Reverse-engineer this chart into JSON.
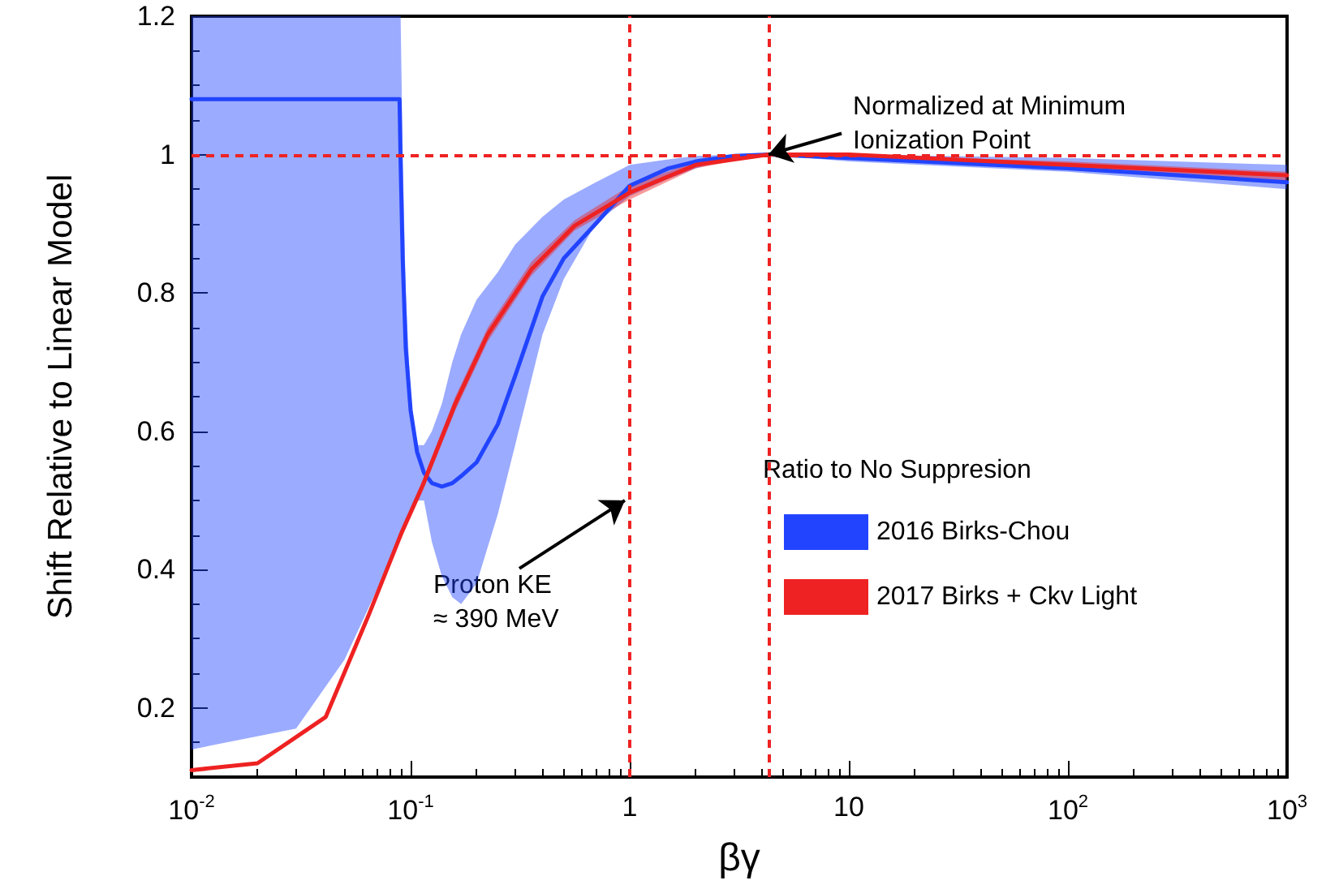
{
  "chart_data": {
    "type": "line",
    "xlabel": "βγ",
    "ylabel": "Shift Relative to Linear Model",
    "legend_title": "Ratio to No Suppresion",
    "log": "x",
    "grid": false,
    "marker": "none",
    "legend": "bottom right",
    "xlim": [
      0.01,
      1000
    ],
    "xticks": [
      {
        "value": 0.01,
        "label": "10$^{-2}$"
      },
      {
        "value": 0.1,
        "label": "10$^{-1}$"
      },
      1,
      10,
      {
        "value": 100,
        "label": "10$^{2}$"
      },
      {
        "value": 1000,
        "label": "10$^{3}$"
      }
    ],
    "ylim": [
      0.1,
      1.2
    ],
    "yticks": [
      0.2,
      0.4,
      0.6,
      0.8,
      1,
      1.2
    ],
    "series": [
      {
        "name": "2016 Birks-Chou",
        "color": "#2244ff",
        "x": [
          0.01,
          0.03,
          0.05,
          0.07,
          0.089,
          0.09,
          0.092,
          0.095,
          0.1,
          0.107,
          0.115,
          0.125,
          0.139,
          0.155,
          0.17,
          0.2,
          0.25,
          0.3,
          0.4,
          0.5,
          0.7,
          1,
          1.5,
          2,
          3,
          4.3,
          10,
          100,
          1000
        ],
        "values": [
          1.08,
          1.08,
          1.08,
          1.08,
          1.08,
          0.99,
          0.85,
          0.72,
          0.63,
          0.57,
          0.54,
          0.525,
          0.52,
          0.525,
          0.535,
          0.555,
          0.61,
          0.68,
          0.795,
          0.85,
          0.9,
          0.955,
          0.98,
          0.99,
          0.998,
          1.0,
          0.995,
          0.98,
          0.96
        ],
        "lower": [
          0.14,
          0.17,
          0.27,
          0.37,
          0.45,
          0.45,
          0.46,
          0.47,
          0.48,
          0.5,
          0.5,
          0.44,
          0.39,
          0.36,
          0.35,
          0.38,
          0.48,
          0.58,
          0.74,
          0.82,
          0.9,
          0.94,
          0.965,
          0.98,
          0.995,
          1.0,
          0.99,
          0.975,
          0.95
        ],
        "upper": [
          1.2,
          1.2,
          1.2,
          1.2,
          1.2,
          1.2,
          1.0,
          0.8,
          0.65,
          0.58,
          0.58,
          0.6,
          0.64,
          0.7,
          0.74,
          0.79,
          0.83,
          0.87,
          0.91,
          0.935,
          0.96,
          0.985,
          0.993,
          0.998,
          1.0,
          1.0,
          1.0,
          0.995,
          0.985
        ]
      },
      {
        "name": "2017 Birks + Ckv Light",
        "color": "#ee2222",
        "x": [
          0.01,
          0.02,
          0.041,
          0.0645,
          0.0906,
          0.114,
          0.16,
          0.225,
          0.356,
          0.56,
          1,
          2,
          4.3,
          10,
          100,
          1000
        ],
        "values": [
          0.11,
          0.12,
          0.187,
          0.335,
          0.452,
          0.523,
          0.64,
          0.74,
          0.834,
          0.897,
          0.945,
          0.985,
          1.0,
          1.0,
          0.985,
          0.97
        ],
        "lower": [
          0.11,
          0.12,
          0.185,
          0.33,
          0.445,
          0.515,
          0.63,
          0.73,
          0.825,
          0.89,
          0.935,
          0.98,
          1.0,
          0.995,
          0.98,
          0.96
        ],
        "upper": [
          0.11,
          0.12,
          0.19,
          0.34,
          0.46,
          0.53,
          0.65,
          0.75,
          0.845,
          0.905,
          0.955,
          0.99,
          1.0,
          1.0,
          0.99,
          0.975
        ]
      }
    ],
    "ref_lines": [
      {
        "axis": "x",
        "value": 1,
        "color": "#ee2222",
        "line_style": "dashed"
      },
      {
        "axis": "x",
        "value": 4.3,
        "color": "#ee2222",
        "line_style": "dashed"
      },
      {
        "axis": "y",
        "value": 1,
        "color": "#ee2222",
        "line_style": "dashed"
      }
    ],
    "annotations": [
      {
        "text": "Normalized at Minimum\nIonization Point",
        "x": 4.3,
        "y": 1
      },
      {
        "text": "Proton KE\n≈ 390 MeV",
        "x": 0.95,
        "y": 0.5
      }
    ]
  }
}
